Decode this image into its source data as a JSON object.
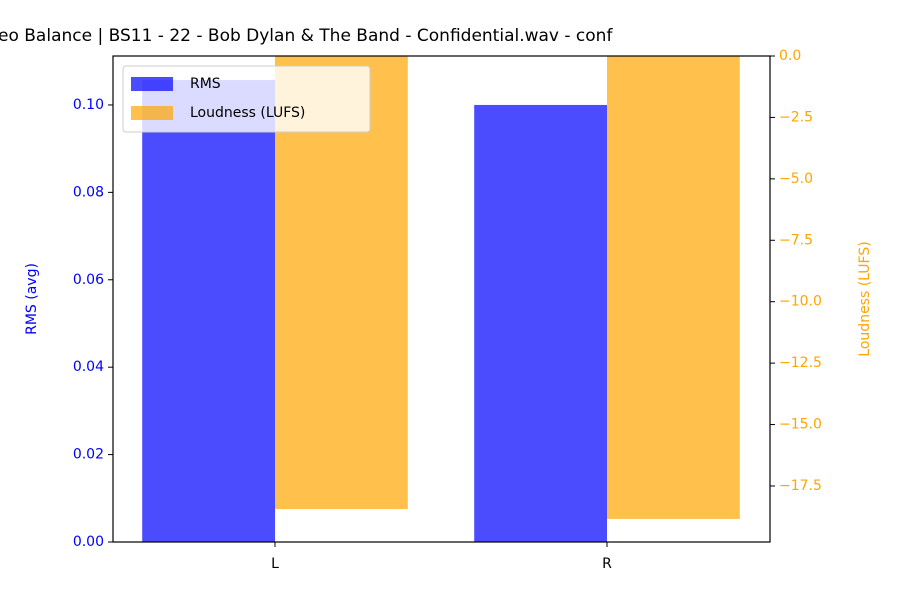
{
  "chart_data": {
    "type": "bar",
    "title": "eo Balance | BS11 - 22 - Bob Dylan & The Band - Confidential.wav - conf",
    "categories": [
      "L",
      "R"
    ],
    "y_label": "RMS (avg)",
    "y2_label": "Loudness (LUFS)",
    "series": [
      {
        "name": "RMS",
        "color": "#0000ff",
        "alpha": 0.7,
        "values": [
          0.1057,
          0.1
        ]
      },
      {
        "name": "Loudness (LUFS)",
        "color": "#ffa500",
        "alpha": 0.7,
        "axis": "y2",
        "values": [
          -18.44,
          -18.84
        ]
      }
    ],
    "ylim": [
      0,
      0.1112
    ],
    "yticks": [
      {
        "value": 0,
        "label": "0.00"
      },
      {
        "value": 0.02,
        "label": "0.02"
      },
      {
        "value": 0.04,
        "label": "0.04"
      },
      {
        "value": 0.06,
        "label": "0.06"
      },
      {
        "value": 0.08,
        "label": "0.08"
      },
      {
        "value": 0.1,
        "label": "0.10"
      }
    ],
    "y2lim": [
      -19.78,
      0
    ],
    "y2ticks": [
      {
        "value": -17.5,
        "label": "−17.5"
      },
      {
        "value": -15,
        "label": "−15.0"
      },
      {
        "value": -12.5,
        "label": "−12.5"
      },
      {
        "value": -10,
        "label": "−10.0"
      },
      {
        "value": -7.5,
        "label": "−7.5"
      },
      {
        "value": -5,
        "label": "−5.0"
      },
      {
        "value": -2.5,
        "label": "−2.5"
      },
      {
        "value": 0,
        "label": "0.0"
      }
    ],
    "legend": "upper left"
  }
}
